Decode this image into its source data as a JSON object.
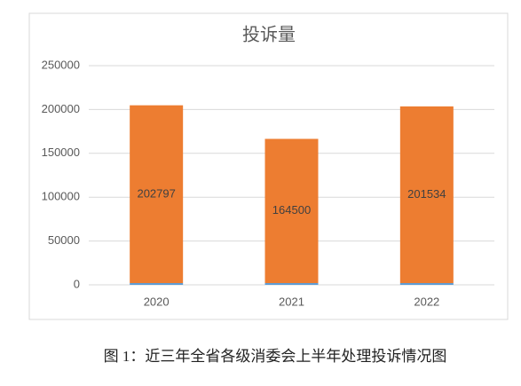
{
  "chart_data": {
    "type": "stacked_bar",
    "title": "投诉量",
    "categories": [
      "2020",
      "2021",
      "2022"
    ],
    "series": [
      {
        "color": "#5b9bd5",
        "values": [
          2000,
          2000,
          2000
        ]
      },
      {
        "color": "#ed7d31",
        "values": [
          202797,
          164500,
          201534
        ]
      }
    ],
    "ylim": [
      0,
      250000
    ],
    "yticks": [
      0,
      50000,
      100000,
      150000,
      200000,
      250000
    ],
    "grid": true,
    "caption": "图 1：近三年全省各级消委会上半年处理投诉情况图"
  }
}
